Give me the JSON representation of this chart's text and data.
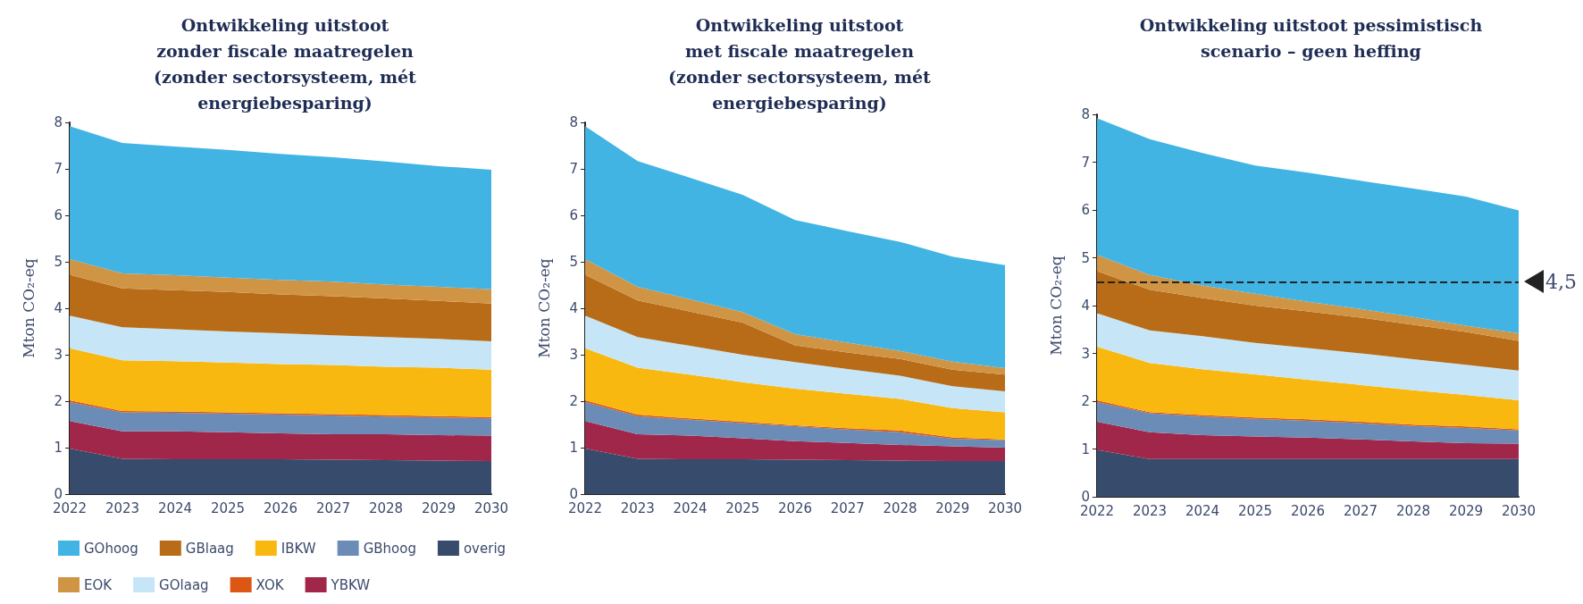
{
  "chart_data": [
    {
      "type": "area",
      "stacked": true,
      "title": "Ontwikkeling uitstoot\nzonder fiscale maatregelen\n(zonder sectorsysteem, mét\nenergiebesparing)",
      "ylabel": "Mton CO₂-eq",
      "categories": [
        "2022",
        "2023",
        "2024",
        "2025",
        "2026",
        "2027",
        "2028",
        "2029",
        "2030"
      ],
      "ylim": [
        0,
        8
      ],
      "yticks": [
        0,
        1,
        2,
        3,
        4,
        5,
        6,
        7,
        8
      ],
      "grid": false,
      "legend": "bottom",
      "marker": "none",
      "series": [
        {
          "name": "overig",
          "color": "#374c6d",
          "values": [
            0.98,
            0.76,
            0.75,
            0.75,
            0.75,
            0.74,
            0.73,
            0.72,
            0.71
          ]
        },
        {
          "name": "YBKW",
          "color": "#a1274a",
          "values": [
            0.59,
            0.59,
            0.6,
            0.58,
            0.56,
            0.55,
            0.56,
            0.55,
            0.55
          ]
        },
        {
          "name": "GBhoog",
          "color": "#6c8cb8",
          "values": [
            0.41,
            0.41,
            0.4,
            0.4,
            0.4,
            0.4,
            0.38,
            0.38,
            0.37
          ]
        },
        {
          "name": "XOK",
          "color": "#dc5614",
          "values": [
            0.04,
            0.03,
            0.03,
            0.03,
            0.03,
            0.03,
            0.03,
            0.03,
            0.03
          ]
        },
        {
          "name": "IBKW",
          "color": "#f8b80f",
          "values": [
            1.12,
            1.09,
            1.08,
            1.07,
            1.06,
            1.06,
            1.04,
            1.04,
            1.02
          ]
        },
        {
          "name": "GOlaag",
          "color": "#c6e6f7",
          "values": [
            0.7,
            0.71,
            0.69,
            0.67,
            0.66,
            0.64,
            0.64,
            0.62,
            0.61
          ]
        },
        {
          "name": "GBlaag",
          "color": "#b86c17",
          "values": [
            0.88,
            0.84,
            0.84,
            0.85,
            0.84,
            0.84,
            0.83,
            0.82,
            0.81
          ]
        },
        {
          "name": "EOK",
          "color": "#d09445",
          "values": [
            0.34,
            0.32,
            0.32,
            0.31,
            0.31,
            0.31,
            0.3,
            0.3,
            0.31
          ]
        },
        {
          "name": "GOhoog",
          "color": "#42b4e4",
          "values": [
            2.86,
            2.81,
            2.77,
            2.75,
            2.71,
            2.68,
            2.65,
            2.6,
            2.57
          ]
        }
      ]
    },
    {
      "type": "area",
      "stacked": true,
      "title": "Ontwikkeling uitstoot\nmet fiscale maatregelen\n(zonder sectorsysteem, mét\nenergiebesparing)",
      "ylabel": "Mton CO₂-eq",
      "categories": [
        "2022",
        "2023",
        "2024",
        "2025",
        "2026",
        "2027",
        "2028",
        "2029",
        "2030"
      ],
      "ylim": [
        0,
        8
      ],
      "yticks": [
        0,
        1,
        2,
        3,
        4,
        5,
        6,
        7,
        8
      ],
      "grid": false,
      "marker": "none",
      "series": [
        {
          "color": "#374c6d",
          "values": [
            0.98,
            0.76,
            0.75,
            0.75,
            0.74,
            0.73,
            0.72,
            0.71,
            0.71
          ]
        },
        {
          "color": "#a1274a",
          "values": [
            0.59,
            0.53,
            0.51,
            0.45,
            0.4,
            0.37,
            0.34,
            0.32,
            0.29
          ]
        },
        {
          "color": "#6c8cb8",
          "values": [
            0.41,
            0.39,
            0.34,
            0.33,
            0.32,
            0.29,
            0.27,
            0.16,
            0.16
          ]
        },
        {
          "color": "#dc5614",
          "values": [
            0.04,
            0.03,
            0.03,
            0.03,
            0.02,
            0.03,
            0.04,
            0.03,
            0.02
          ]
        },
        {
          "color": "#f8b80f",
          "values": [
            1.12,
            1.01,
            0.94,
            0.85,
            0.79,
            0.74,
            0.68,
            0.63,
            0.58
          ]
        },
        {
          "color": "#c6e6f7",
          "values": [
            0.7,
            0.66,
            0.62,
            0.59,
            0.57,
            0.53,
            0.5,
            0.47,
            0.45
          ]
        },
        {
          "color": "#b86c17",
          "values": [
            0.88,
            0.79,
            0.74,
            0.69,
            0.36,
            0.36,
            0.36,
            0.36,
            0.36
          ]
        },
        {
          "color": "#d09445",
          "values": [
            0.34,
            0.29,
            0.26,
            0.23,
            0.24,
            0.21,
            0.17,
            0.17,
            0.14
          ]
        },
        {
          "color": "#42b4e4",
          "values": [
            2.86,
            2.71,
            2.62,
            2.52,
            2.46,
            2.4,
            2.35,
            2.26,
            2.22
          ]
        }
      ]
    },
    {
      "type": "area",
      "stacked": true,
      "title": "Ontwikkeling uitstoot pessimistisch\nscenario – geen heffing",
      "ylabel": "Mton CO₂-eq",
      "categories": [
        "2022",
        "2023",
        "2024",
        "2025",
        "2026",
        "2027",
        "2028",
        "2029",
        "2030"
      ],
      "ylim": [
        0,
        8
      ],
      "yticks": [
        0,
        1,
        2,
        3,
        4,
        5,
        6,
        7,
        8
      ],
      "grid": false,
      "marker": "none",
      "ref_lines": [
        {
          "axis": "y",
          "value": 4.5,
          "label": "4,5",
          "color": "#222222",
          "line_style": "dashed"
        }
      ],
      "series": [
        {
          "color": "#374c6d",
          "values": [
            0.98,
            0.79,
            0.79,
            0.79,
            0.79,
            0.79,
            0.79,
            0.79,
            0.79
          ]
        },
        {
          "color": "#a1274a",
          "values": [
            0.59,
            0.56,
            0.5,
            0.47,
            0.45,
            0.41,
            0.37,
            0.33,
            0.32
          ]
        },
        {
          "color": "#6c8cb8",
          "values": [
            0.41,
            0.4,
            0.39,
            0.37,
            0.35,
            0.34,
            0.32,
            0.32,
            0.28
          ]
        },
        {
          "color": "#dc5614",
          "values": [
            0.04,
            0.02,
            0.03,
            0.03,
            0.03,
            0.03,
            0.03,
            0.03,
            0.02
          ]
        },
        {
          "color": "#f8b80f",
          "values": [
            1.12,
            1.03,
            0.96,
            0.9,
            0.83,
            0.77,
            0.72,
            0.66,
            0.61
          ]
        },
        {
          "color": "#c6e6f7",
          "values": [
            0.7,
            0.68,
            0.69,
            0.66,
            0.66,
            0.66,
            0.65,
            0.63,
            0.62
          ]
        },
        {
          "color": "#b86c17",
          "values": [
            0.88,
            0.85,
            0.8,
            0.78,
            0.77,
            0.75,
            0.72,
            0.69,
            0.62
          ]
        },
        {
          "color": "#d09445",
          "values": [
            0.34,
            0.31,
            0.26,
            0.25,
            0.2,
            0.18,
            0.16,
            0.13,
            0.16
          ]
        },
        {
          "color": "#42b4e4",
          "values": [
            2.86,
            2.84,
            2.77,
            2.68,
            2.7,
            2.68,
            2.69,
            2.7,
            2.57
          ]
        }
      ]
    }
  ]
}
